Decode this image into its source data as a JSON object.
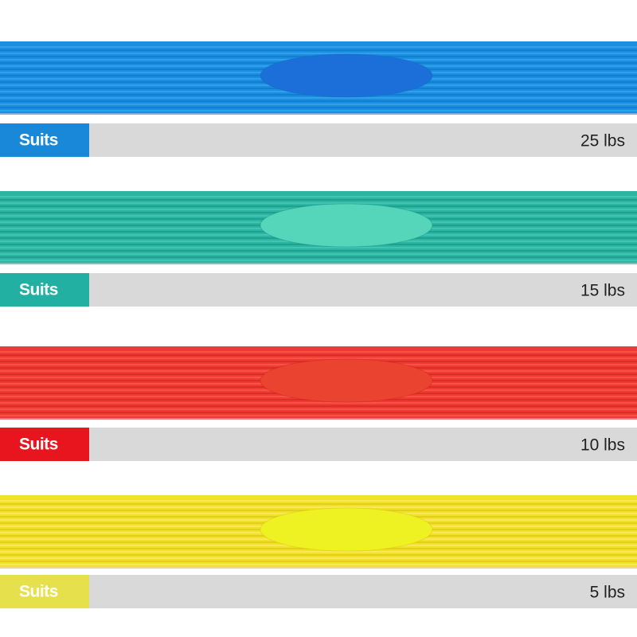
{
  "bands": [
    {
      "label": "Suits",
      "weight": "25 lbs"
    },
    {
      "label": "Suits",
      "weight": "15 lbs"
    },
    {
      "label": "Suits",
      "weight": "10 lbs"
    },
    {
      "label": "Suits",
      "weight": "5 lbs"
    }
  ]
}
